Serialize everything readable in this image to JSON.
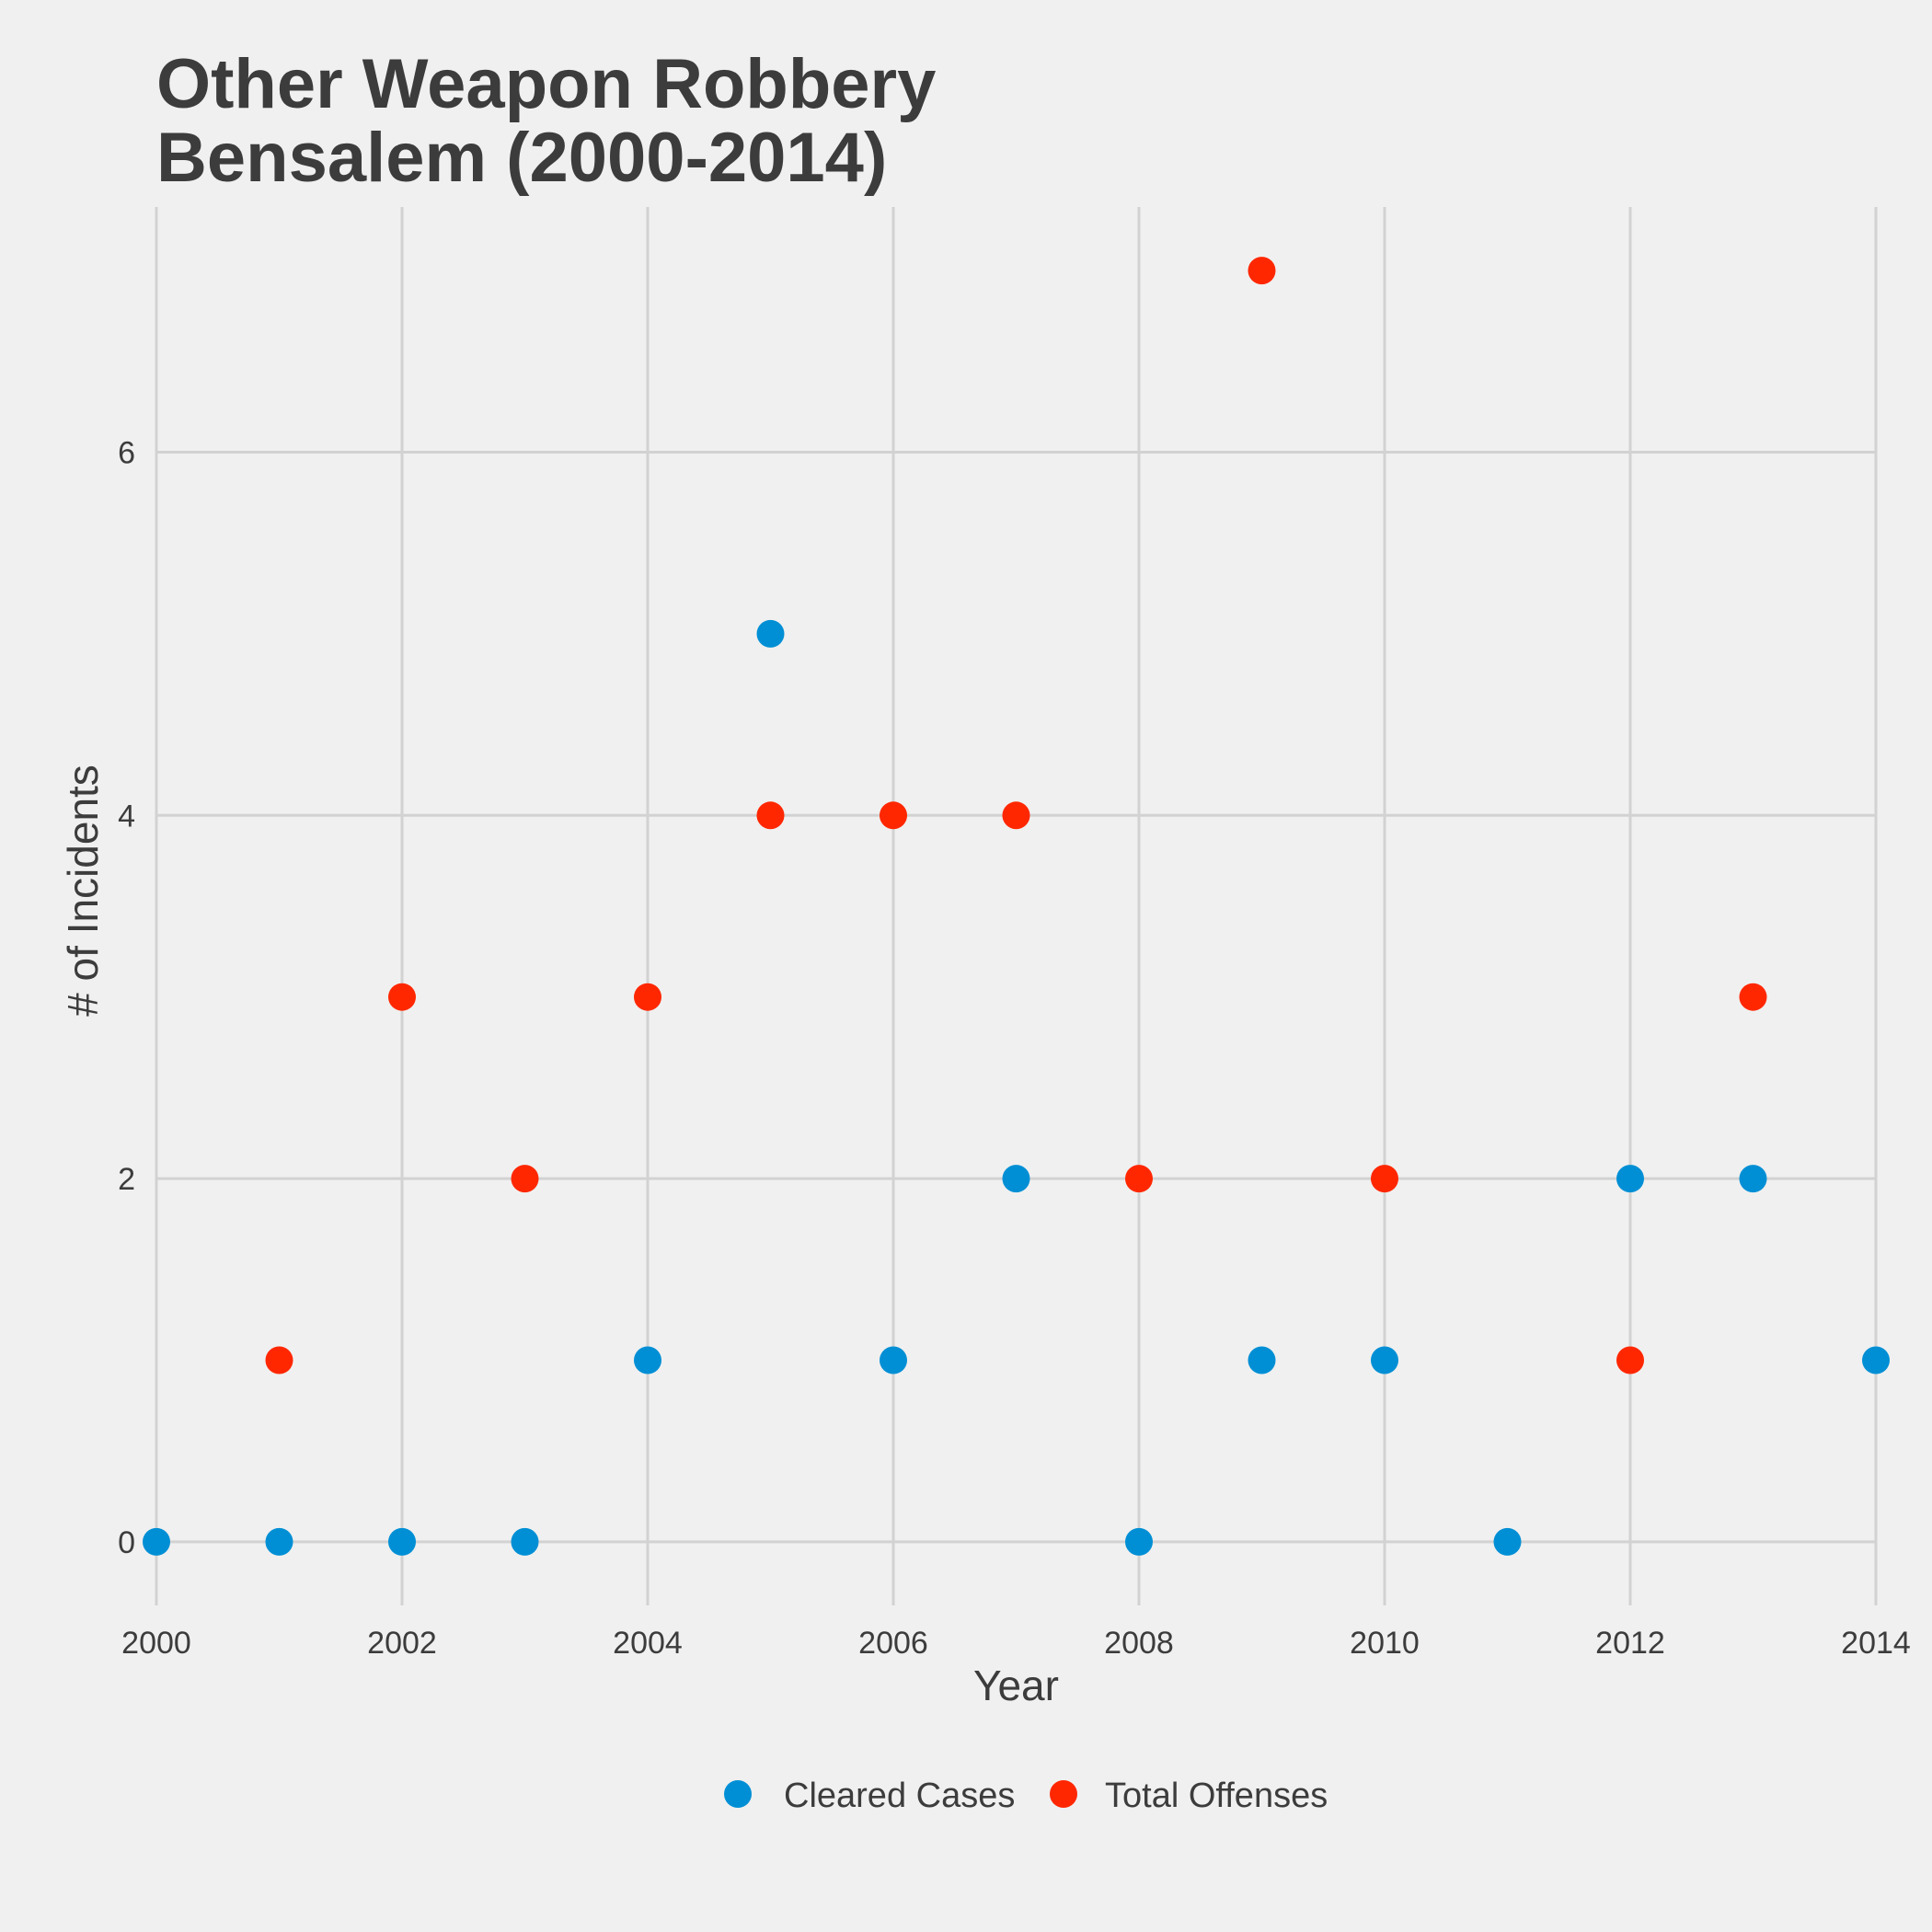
{
  "chart_data": {
    "type": "scatter",
    "title_lines": [
      "Other Weapon Robbery",
      "Bensalem (2000-2014)"
    ],
    "xlabel": "Year",
    "ylabel": "# of Incidents",
    "xlim": [
      2000,
      2014
    ],
    "ylim": [
      -0.35,
      7.35
    ],
    "x_ticks": [
      2000,
      2002,
      2004,
      2006,
      2008,
      2010,
      2012,
      2014
    ],
    "y_ticks": [
      0,
      2,
      4,
      6
    ],
    "grid": true,
    "legend_position": "bottom",
    "series": [
      {
        "name": "Cleared Cases",
        "color": "#008fd5",
        "points": [
          {
            "x": 2000,
            "y": 0
          },
          {
            "x": 2001,
            "y": 0
          },
          {
            "x": 2002,
            "y": 0
          },
          {
            "x": 2003,
            "y": 0
          },
          {
            "x": 2004,
            "y": 1
          },
          {
            "x": 2005,
            "y": 5
          },
          {
            "x": 2006,
            "y": 1
          },
          {
            "x": 2007,
            "y": 2
          },
          {
            "x": 2008,
            "y": 0
          },
          {
            "x": 2009,
            "y": 1
          },
          {
            "x": 2010,
            "y": 1
          },
          {
            "x": 2011,
            "y": 0
          },
          {
            "x": 2012,
            "y": 2
          },
          {
            "x": 2013,
            "y": 2
          },
          {
            "x": 2014,
            "y": 1
          }
        ]
      },
      {
        "name": "Total Offenses",
        "color": "#ff2700",
        "points": [
          {
            "x": 2001,
            "y": 1
          },
          {
            "x": 2002,
            "y": 3
          },
          {
            "x": 2003,
            "y": 2
          },
          {
            "x": 2004,
            "y": 3
          },
          {
            "x": 2005,
            "y": 4
          },
          {
            "x": 2006,
            "y": 4
          },
          {
            "x": 2007,
            "y": 4
          },
          {
            "x": 2008,
            "y": 2
          },
          {
            "x": 2009,
            "y": 7
          },
          {
            "x": 2010,
            "y": 2
          },
          {
            "x": 2012,
            "y": 1
          },
          {
            "x": 2013,
            "y": 3
          }
        ]
      }
    ]
  }
}
